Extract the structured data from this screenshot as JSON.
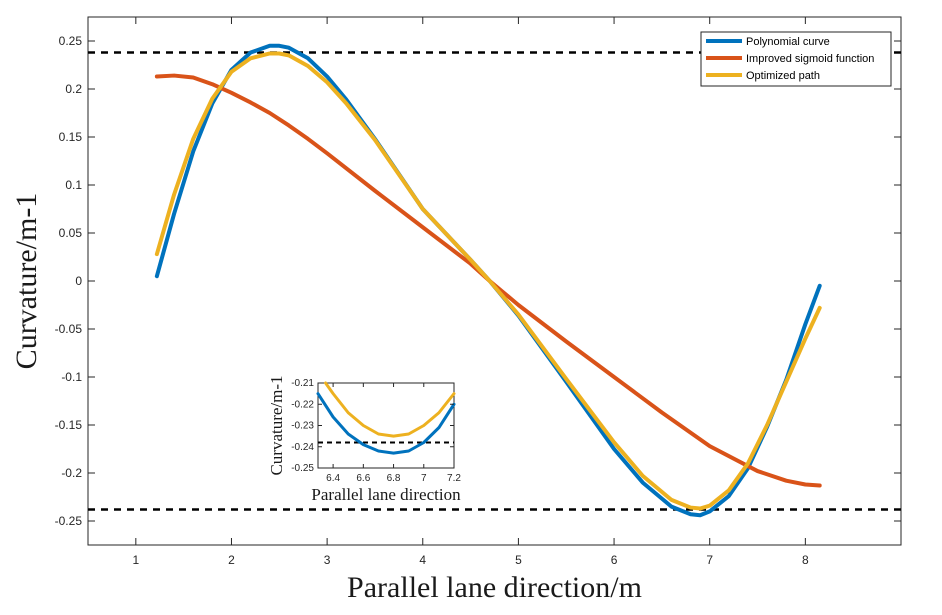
{
  "chart_data": [
    {
      "type": "line",
      "xlabel": "Parallel lane direction/m",
      "ylabel": "Curvature/m-1",
      "xlim": [
        0.5,
        9.0
      ],
      "ylim": [
        -0.275,
        0.275
      ],
      "xticks": [
        1,
        2,
        3,
        4,
        5,
        6,
        7,
        8
      ],
      "yticks": [
        0.25,
        0.2,
        0.15,
        0.1,
        0.05,
        0,
        -0.05,
        -0.1,
        -0.15,
        -0.2,
        -0.25
      ],
      "ytick_labels": [
        "0.25",
        "0.2",
        "0.15",
        "0.1",
        "0.05",
        "0",
        "-0.05",
        "-0.1",
        "-0.15",
        "-0.2",
        "-0.25"
      ],
      "grid": false,
      "legend_position": "top-right",
      "reference_lines": [
        0.238,
        -0.238
      ],
      "series": [
        {
          "name": "Polynomial curve",
          "color": "#0072BD",
          "x": [
            1.22,
            1.4,
            1.6,
            1.8,
            2.0,
            2.2,
            2.4,
            2.5,
            2.6,
            2.8,
            3.0,
            3.2,
            3.5,
            4.0,
            4.5,
            4.7,
            5.0,
            5.5,
            6.0,
            6.3,
            6.6,
            6.8,
            6.9,
            7.0,
            7.2,
            7.4,
            7.6,
            7.8,
            8.0,
            8.15
          ],
          "y": [
            0.005,
            0.07,
            0.135,
            0.185,
            0.22,
            0.238,
            0.245,
            0.245,
            0.243,
            0.232,
            0.213,
            0.189,
            0.148,
            0.075,
            0.022,
            0.0,
            -0.036,
            -0.105,
            -0.175,
            -0.21,
            -0.235,
            -0.243,
            -0.244,
            -0.24,
            -0.224,
            -0.195,
            -0.152,
            -0.103,
            -0.045,
            -0.005
          ]
        },
        {
          "name": "Improved sigmoid function",
          "color": "#D95319",
          "x": [
            1.22,
            1.4,
            1.6,
            1.8,
            2.0,
            2.2,
            2.4,
            2.6,
            2.8,
            3.0,
            3.5,
            4.0,
            4.5,
            4.7,
            5.0,
            5.5,
            6.0,
            6.5,
            7.0,
            7.5,
            7.8,
            8.0,
            8.15
          ],
          "y": [
            0.213,
            0.214,
            0.212,
            0.205,
            0.196,
            0.186,
            0.175,
            0.162,
            0.148,
            0.133,
            0.094,
            0.056,
            0.018,
            0.0,
            -0.025,
            -0.063,
            -0.1,
            -0.137,
            -0.172,
            -0.198,
            -0.208,
            -0.212,
            -0.213
          ]
        },
        {
          "name": "Optimized path",
          "color": "#EDB120",
          "x": [
            1.22,
            1.4,
            1.6,
            1.8,
            2.0,
            2.2,
            2.4,
            2.5,
            2.6,
            2.8,
            3.0,
            3.2,
            3.5,
            4.0,
            4.5,
            4.7,
            5.0,
            5.5,
            6.0,
            6.3,
            6.6,
            6.8,
            6.9,
            7.0,
            7.2,
            7.4,
            7.6,
            7.8,
            8.0,
            8.15
          ],
          "y": [
            0.028,
            0.09,
            0.148,
            0.19,
            0.218,
            0.232,
            0.237,
            0.237,
            0.235,
            0.224,
            0.207,
            0.185,
            0.147,
            0.075,
            0.022,
            0.0,
            -0.035,
            -0.102,
            -0.168,
            -0.203,
            -0.228,
            -0.236,
            -0.237,
            -0.234,
            -0.218,
            -0.19,
            -0.15,
            -0.105,
            -0.06,
            -0.028
          ]
        }
      ]
    },
    {
      "type": "line",
      "xlabel": "Parallel lane direction",
      "ylabel": "Curvature/m-1",
      "xlim": [
        6.3,
        7.2
      ],
      "ylim": [
        -0.25,
        -0.21
      ],
      "xticks": [
        6.4,
        6.6,
        6.8,
        7,
        7.2
      ],
      "xtick_labels": [
        "6.4",
        "6.6",
        "6.8",
        "7",
        "7.2"
      ],
      "yticks": [
        -0.21,
        -0.22,
        -0.23,
        -0.24,
        -0.25
      ],
      "ytick_labels": [
        "-0.21",
        "-0.22",
        "-0.23",
        "-0.24",
        "-0.25"
      ],
      "reference_lines": [
        -0.238
      ],
      "series": [
        {
          "color": "#0072BD",
          "x": [
            6.3,
            6.4,
            6.5,
            6.6,
            6.7,
            6.8,
            6.9,
            7.0,
            7.1,
            7.2
          ],
          "y": [
            -0.215,
            -0.226,
            -0.234,
            -0.239,
            -0.242,
            -0.243,
            -0.242,
            -0.238,
            -0.231,
            -0.22
          ]
        },
        {
          "color": "#EDB120",
          "x": [
            6.35,
            6.4,
            6.5,
            6.6,
            6.7,
            6.8,
            6.9,
            7.0,
            7.1,
            7.2
          ],
          "y": [
            -0.21,
            -0.215,
            -0.224,
            -0.23,
            -0.234,
            -0.235,
            -0.234,
            -0.23,
            -0.224,
            -0.215
          ]
        }
      ]
    }
  ]
}
